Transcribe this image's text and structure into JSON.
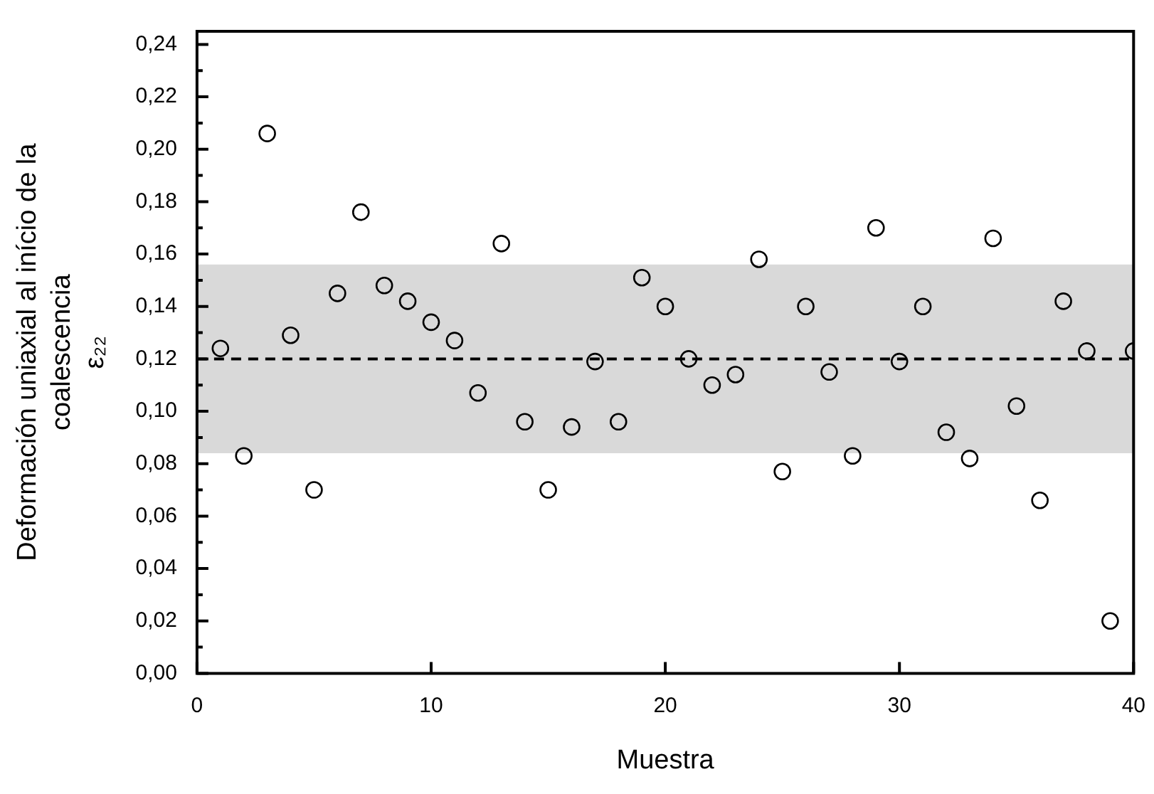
{
  "chart_data": {
    "type": "scatter",
    "xlabel": "Muestra",
    "ylabel": "Deformación uniaxial al início de la\ncoalescencia\nε₂₂",
    "x": [
      1,
      2,
      3,
      4,
      5,
      6,
      7,
      8,
      9,
      10,
      11,
      12,
      13,
      14,
      15,
      16,
      17,
      18,
      19,
      20,
      21,
      22,
      23,
      24,
      25,
      26,
      27,
      28,
      29,
      30,
      31,
      32,
      33,
      34,
      35,
      36,
      37,
      38,
      39,
      40
    ],
    "series": [
      {
        "color": "#000000",
        "values": [
          0.124,
          0.083,
          0.206,
          0.129,
          0.07,
          0.145,
          0.176,
          0.148,
          0.142,
          0.134,
          0.127,
          0.107,
          0.164,
          0.096,
          0.07,
          0.094,
          0.119,
          0.096,
          0.151,
          0.14,
          0.12,
          0.11,
          0.114,
          0.158,
          0.077,
          0.14,
          0.115,
          0.083,
          0.17,
          0.119,
          0.14,
          0.092,
          0.082,
          0.166,
          0.102,
          0.066,
          0.142,
          0.123,
          0.02,
          0.123
        ]
      }
    ],
    "marker": "circle",
    "xlim": [
      0,
      40
    ],
    "xticks": [
      0,
      10,
      20,
      30,
      40
    ],
    "ylim": [
      0,
      0.245
    ],
    "yticks": [
      {
        "value": 0,
        "label": "0,00"
      },
      {
        "value": 0.01,
        "label": null
      },
      {
        "value": 0.02,
        "label": "0,02"
      },
      {
        "value": 0.03,
        "label": null
      },
      {
        "value": 0.04,
        "label": "0,04"
      },
      {
        "value": 0.05,
        "label": null
      },
      {
        "value": 0.06,
        "label": "0,06"
      },
      {
        "value": 0.07,
        "label": null
      },
      {
        "value": 0.08,
        "label": "0,08"
      },
      {
        "value": 0.09,
        "label": null
      },
      {
        "value": 0.1,
        "label": "0,10"
      },
      {
        "value": 0.11,
        "label": null
      },
      {
        "value": 0.12,
        "label": "0,12"
      },
      {
        "value": 0.13,
        "label": null
      },
      {
        "value": 0.14,
        "label": "0,14"
      },
      {
        "value": 0.15,
        "label": null
      },
      {
        "value": 0.16,
        "label": "0,16"
      },
      {
        "value": 0.17,
        "label": null
      },
      {
        "value": 0.18,
        "label": "0,18"
      },
      {
        "value": 0.19,
        "label": null
      },
      {
        "value": 0.2,
        "label": "0,20"
      },
      {
        "value": 0.21,
        "label": null
      },
      {
        "value": 0.22,
        "label": "0,22"
      },
      {
        "value": 0.23,
        "label": null
      },
      {
        "value": 0.24,
        "label": "0,24"
      }
    ],
    "ref_lines": [
      {
        "axis": "y",
        "value": 0.12,
        "color": "#000000",
        "line_style": "dashed"
      }
    ],
    "bands": [
      {
        "axis": "y",
        "from": 0.084,
        "to": 0.156,
        "color": "#d9d9d9"
      }
    ]
  }
}
